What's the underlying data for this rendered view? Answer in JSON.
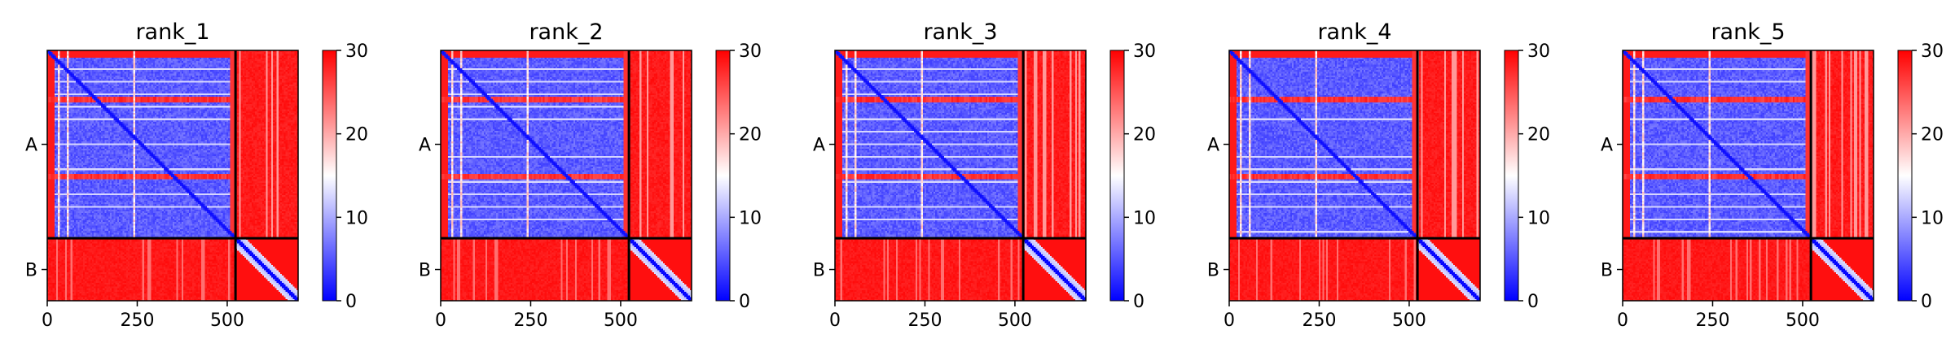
{
  "chart_data": {
    "type": "heatmap",
    "description_free": true,
    "colormap": {
      "name": "bwr",
      "colors": [
        "#0000ff",
        "#ffffff",
        "#ff0000"
      ]
    },
    "chain_labels": [
      "A",
      "B"
    ],
    "chain_boundary": 523,
    "total_length": 697,
    "x_ticks": [
      0,
      250,
      500
    ],
    "x_tick_labels": [
      "0",
      "250",
      "500"
    ],
    "xlim": [
      0,
      697
    ],
    "colorbar": {
      "min": 0,
      "max": 30,
      "ticks": [
        0,
        10,
        20,
        30
      ],
      "tick_labels": [
        "0",
        "10",
        "20",
        "30"
      ]
    },
    "panels": [
      {
        "title": "rank_1"
      },
      {
        "title": "rank_2"
      },
      {
        "title": "rank_3"
      },
      {
        "title": "rank_4"
      },
      {
        "title": "rank_5"
      }
    ]
  }
}
